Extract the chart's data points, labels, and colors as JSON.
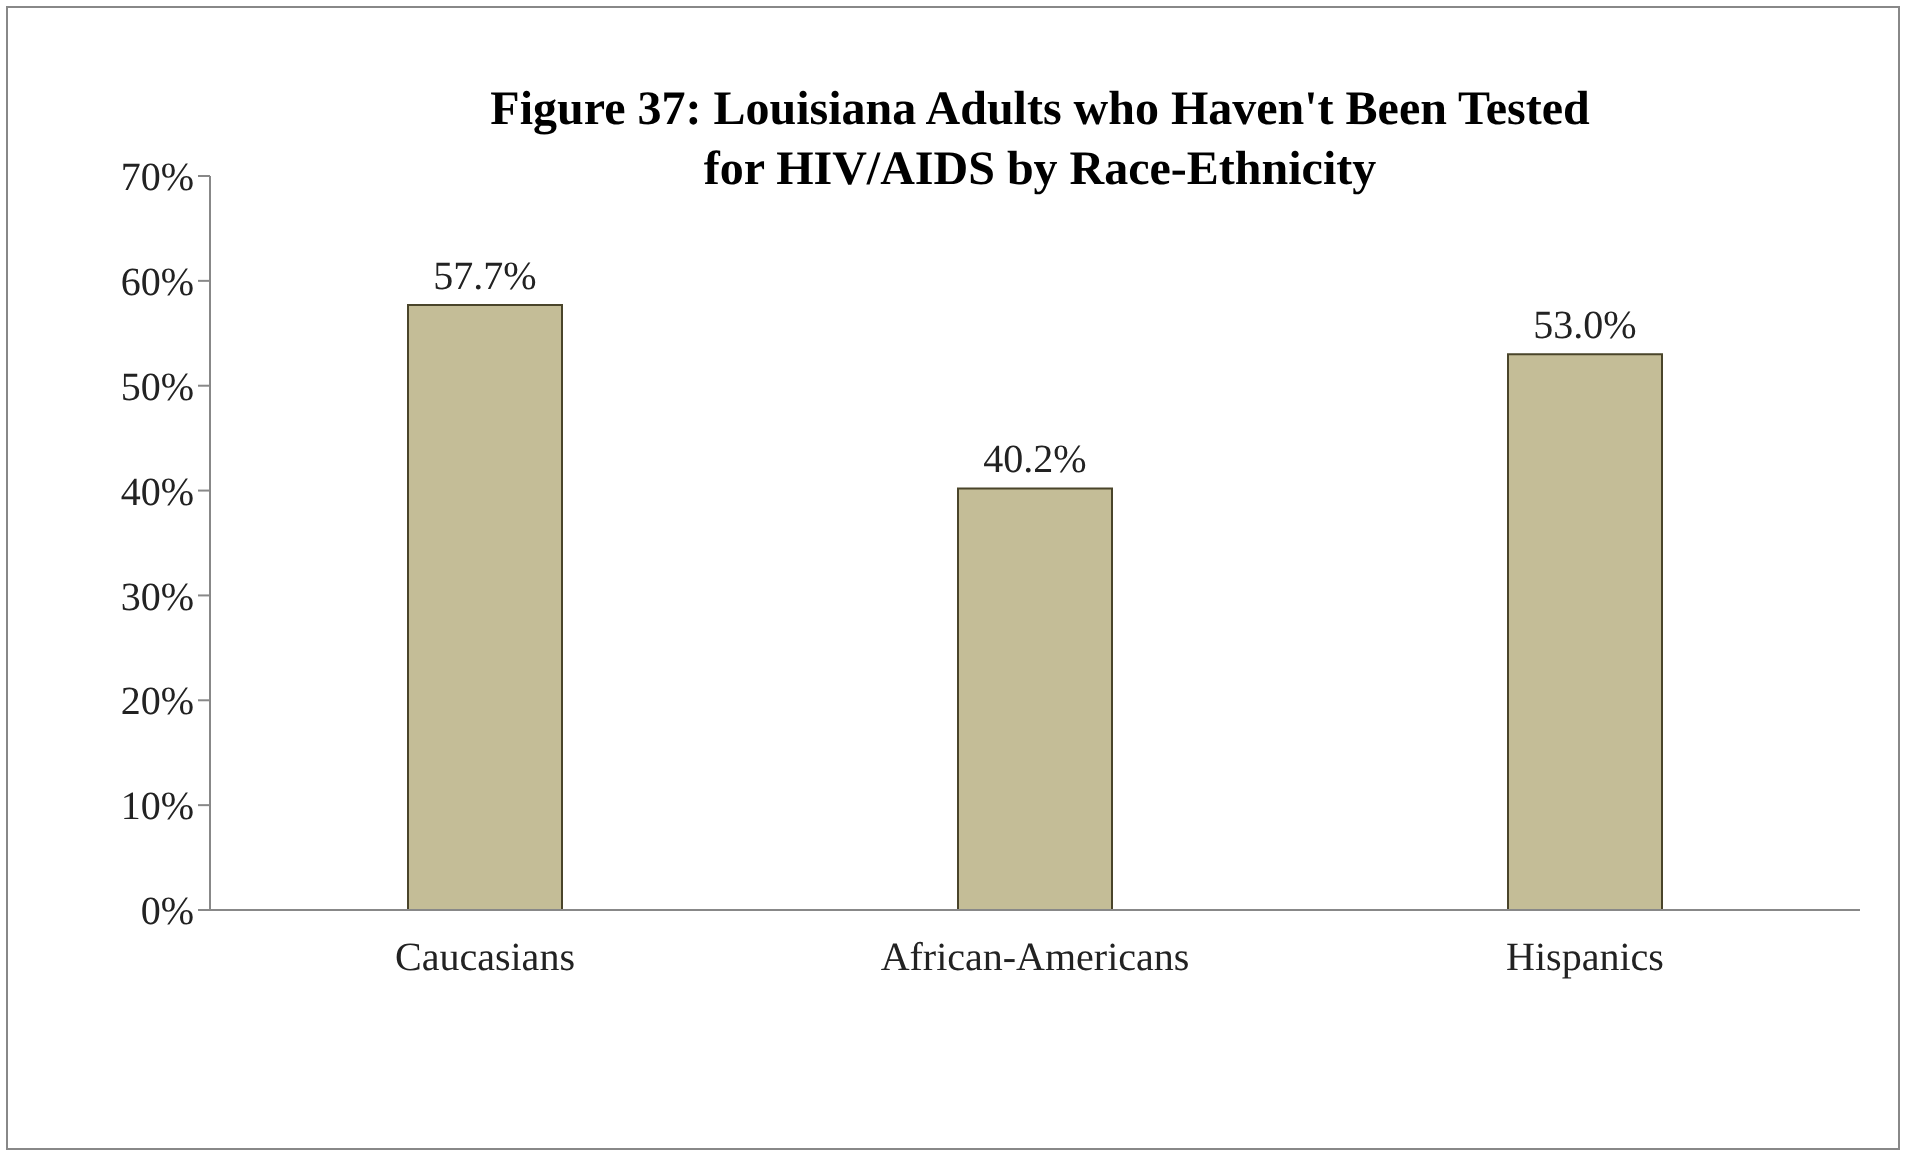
{
  "chart_data": {
    "type": "bar",
    "title": "Figure 37: Louisiana Adults who Haven't Been Tested\nfor HIV/AIDS by Race-Ethnicity",
    "categories": [
      "Caucasians",
      "African-Americans",
      "Hispanics"
    ],
    "values": [
      57.7,
      40.2,
      53.0
    ],
    "value_labels": [
      "57.7%",
      "40.2%",
      "53.0%"
    ],
    "color": "#c4bd97",
    "ylim": [
      0,
      70
    ],
    "yticks": [
      {
        "value": 0,
        "label": "0%"
      },
      {
        "value": 10,
        "label": "10%"
      },
      {
        "value": 20,
        "label": "20%"
      },
      {
        "value": 30,
        "label": "30%"
      },
      {
        "value": 40,
        "label": "40%"
      },
      {
        "value": 50,
        "label": "50%"
      },
      {
        "value": 60,
        "label": "60%"
      },
      {
        "value": 70,
        "label": "70%"
      }
    ],
    "grid": false,
    "legend": false
  }
}
